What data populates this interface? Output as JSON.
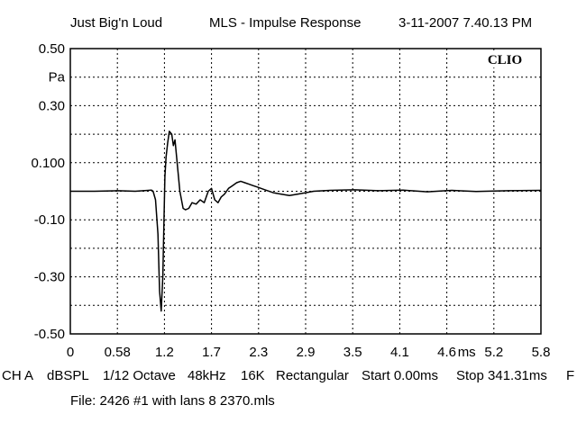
{
  "header": {
    "left": "Just Big'n Loud",
    "center": "MLS - Impulse Response",
    "right": "3-11-2007 7.40.13 PM"
  },
  "logo": "CLIO",
  "chart_data": {
    "type": "line",
    "title": "MLS - Impulse Response",
    "xlabel": "ms",
    "ylabel": "Pa",
    "xlim": [
      0,
      5.8
    ],
    "ylim": [
      -0.5,
      0.5
    ],
    "x_ticks": [
      "0",
      "0.58",
      "1.2",
      "1.7",
      "2.3",
      "2.9",
      "3.5",
      "4.1",
      "4.6",
      "5.2",
      "5.8"
    ],
    "x_unit_label": "ms",
    "y_ticks": [
      {
        "value": 0.5,
        "label": "0.50"
      },
      {
        "value": 0.4,
        "label": "Pa"
      },
      {
        "value": 0.3,
        "label": "0.30"
      },
      {
        "value": 0.1,
        "label": "0.100"
      },
      {
        "value": -0.1,
        "label": "-0.10"
      },
      {
        "value": -0.3,
        "label": "-0.30"
      },
      {
        "value": -0.5,
        "label": "-0.50"
      }
    ],
    "grid": true,
    "series": [
      {
        "color": "#000000",
        "x": [
          0,
          0.3,
          0.58,
          0.8,
          1.0,
          1.02,
          1.05,
          1.08,
          1.1,
          1.12,
          1.14,
          1.155,
          1.165,
          1.18,
          1.2,
          1.22,
          1.25,
          1.27,
          1.29,
          1.31,
          1.33,
          1.35,
          1.37,
          1.39,
          1.42,
          1.46,
          1.5,
          1.55,
          1.6,
          1.65,
          1.7,
          1.74,
          1.78,
          1.82,
          1.86,
          1.9,
          1.95,
          2.0,
          2.05,
          2.1,
          2.15,
          2.2,
          2.25,
          2.3,
          2.4,
          2.5,
          2.6,
          2.7,
          2.8,
          2.9,
          3.0,
          3.2,
          3.5,
          3.8,
          4.1,
          4.4,
          4.7,
          5.0,
          5.4,
          5.8
        ],
        "y": [
          0,
          0,
          0.002,
          0,
          0.004,
          0,
          -0.03,
          -0.15,
          -0.35,
          -0.42,
          -0.3,
          -0.1,
          0.05,
          0.12,
          0.17,
          0.21,
          0.2,
          0.16,
          0.18,
          0.12,
          0.06,
          0.0,
          -0.03,
          -0.06,
          -0.065,
          -0.06,
          -0.04,
          -0.045,
          -0.03,
          -0.04,
          0.0,
          0.01,
          -0.03,
          -0.04,
          -0.02,
          -0.01,
          0.01,
          0.02,
          0.03,
          0.035,
          0.03,
          0.025,
          0.02,
          0.015,
          0.005,
          -0.005,
          -0.01,
          -0.015,
          -0.01,
          -0.005,
          0.0,
          0.003,
          0.005,
          0.002,
          0.004,
          -0.002,
          0.003,
          -0.001,
          0.002,
          0.003
        ]
      }
    ]
  },
  "footer": {
    "items": [
      "CH A",
      "dBSPL",
      "1/12 Octave",
      "48kHz",
      "16K",
      "Rectangular",
      "Start 0.00ms",
      "Stop 341.31ms",
      "F"
    ],
    "file": "File: 2426 #1 with lans 8 2370.mls"
  }
}
